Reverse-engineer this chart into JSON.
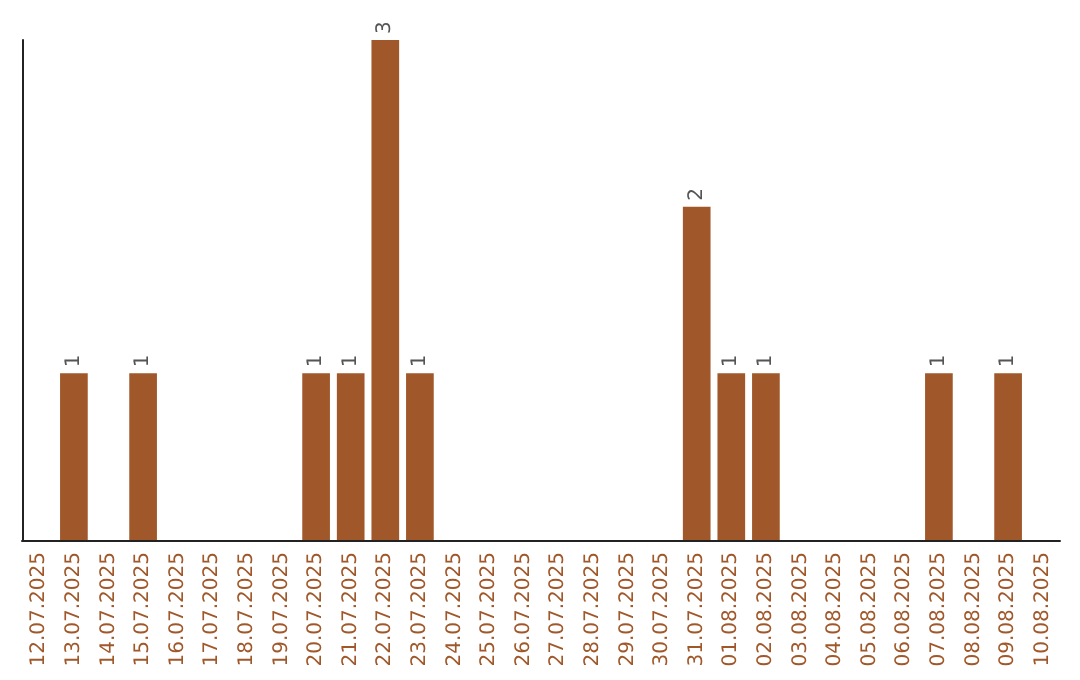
{
  "chart_data": {
    "type": "bar",
    "categories": [
      "12.07.2025",
      "13.07.2025",
      "14.07.2025",
      "15.07.2025",
      "16.07.2025",
      "17.07.2025",
      "18.07.2025",
      "19.07.2025",
      "20.07.2025",
      "21.07.2025",
      "22.07.2025",
      "23.07.2025",
      "24.07.2025",
      "25.07.2025",
      "26.07.2025",
      "27.07.2025",
      "28.07.2025",
      "29.07.2025",
      "30.07.2025",
      "31.07.2025",
      "01.08.2025",
      "02.08.2025",
      "03.08.2025",
      "04.08.2025",
      "05.08.2025",
      "06.08.2025",
      "07.08.2025",
      "08.08.2025",
      "09.08.2025",
      "10.08.2025"
    ],
    "values": [
      0,
      1,
      0,
      1,
      0,
      0,
      0,
      0,
      1,
      1,
      3,
      1,
      0,
      0,
      0,
      0,
      0,
      0,
      0,
      2,
      1,
      1,
      0,
      0,
      0,
      0,
      1,
      0,
      1,
      0
    ],
    "value_labels": [
      null,
      "1",
      null,
      "1",
      null,
      null,
      null,
      null,
      "1",
      "1",
      "3",
      "1",
      null,
      null,
      null,
      null,
      null,
      null,
      null,
      "2",
      "1",
      "1",
      null,
      null,
      null,
      null,
      "1",
      null,
      "1",
      null
    ],
    "color": "#a0582a"
  }
}
